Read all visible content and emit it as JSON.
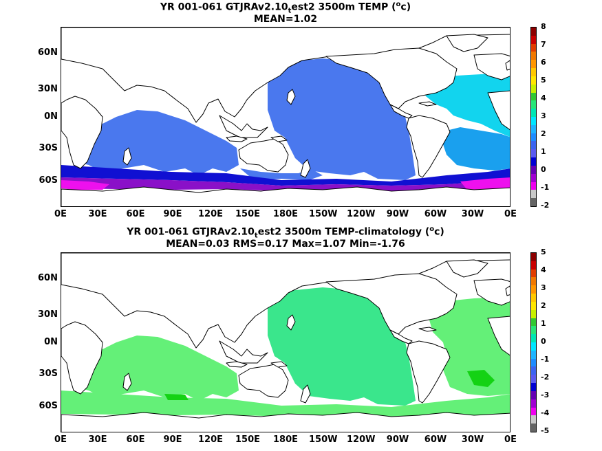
{
  "panels": [
    {
      "title_prefix": "YR 001-061 GTJRAv2.10",
      "title_sub": "t",
      "title_mid": "est2 3500m TEMP (",
      "title_sup": "o",
      "title_suffix": "c)",
      "stats": "MEAN=1.02",
      "lat_labels": [
        "60N",
        "30N",
        "0N",
        "30S",
        "60S"
      ],
      "lon_labels": [
        "0E",
        "30E",
        "60E",
        "90E",
        "120E",
        "150E",
        "180E",
        "150W",
        "120W",
        "90W",
        "60W",
        "30W",
        "0E"
      ],
      "colorbar": {
        "labels": [
          "8",
          "7",
          "6",
          "5",
          "4",
          "3",
          "2",
          "1",
          "0",
          "-1",
          "-2"
        ],
        "colors": [
          "#8c0000",
          "#c80000",
          "#e03c00",
          "#f07800",
          "#ff9600",
          "#ffc800",
          "#ffe600",
          "#c8f000",
          "#32c832",
          "#28e678",
          "#00e6b4",
          "#00e6ff",
          "#1eb4ff",
          "#1e8cff",
          "#3c64f0",
          "#5a5af0",
          "#0000d2",
          "#6400b4",
          "#a000d2",
          "#f000f0",
          "#c8c8c8",
          "#646464"
        ]
      },
      "palette": {
        "land": "#ffffff",
        "pacific": "#4a78ee",
        "indian": "#4a78ee",
        "atlantic_north": "#12d4ee",
        "atlantic_south": "#1aa0ee",
        "southern_blue": "#1010d2",
        "southern_purple": "#8a10c8",
        "southern_magenta": "#ee10ee"
      }
    },
    {
      "title_prefix": "YR 001-061 GTJRAv2.10",
      "title_sub": "t",
      "title_mid": "est2 3500m TEMP-climatology (",
      "title_sup": "o",
      "title_suffix": "c)",
      "stats": "MEAN=0.03   RMS=0.17   Max=1.07   Min=-1.76",
      "lat_labels": [
        "60N",
        "30N",
        "0N",
        "30S",
        "60S"
      ],
      "lon_labels": [
        "0E",
        "30E",
        "60E",
        "90E",
        "120E",
        "150E",
        "180E",
        "150W",
        "120W",
        "90W",
        "60W",
        "30W",
        "0E"
      ],
      "colorbar": {
        "labels": [
          "5",
          "4",
          "3",
          "2",
          "1",
          "0",
          "-1",
          "-2",
          "-3",
          "-4",
          "-5"
        ],
        "colors": [
          "#8c0000",
          "#c80000",
          "#e03c00",
          "#f07800",
          "#ff9600",
          "#ffc800",
          "#ffe600",
          "#c8f000",
          "#32c832",
          "#28e678",
          "#00e6b4",
          "#00e6ff",
          "#1eb4ff",
          "#1e8cff",
          "#3c64f0",
          "#5a5af0",
          "#0000d2",
          "#6400b4",
          "#a000d2",
          "#f000f0",
          "#c8c8c8",
          "#646464"
        ]
      },
      "palette": {
        "land": "#ffffff",
        "ocean_main": "#3ae68c",
        "ocean_light": "#64f078",
        "ocean_bright": "#14d214"
      }
    }
  ]
}
